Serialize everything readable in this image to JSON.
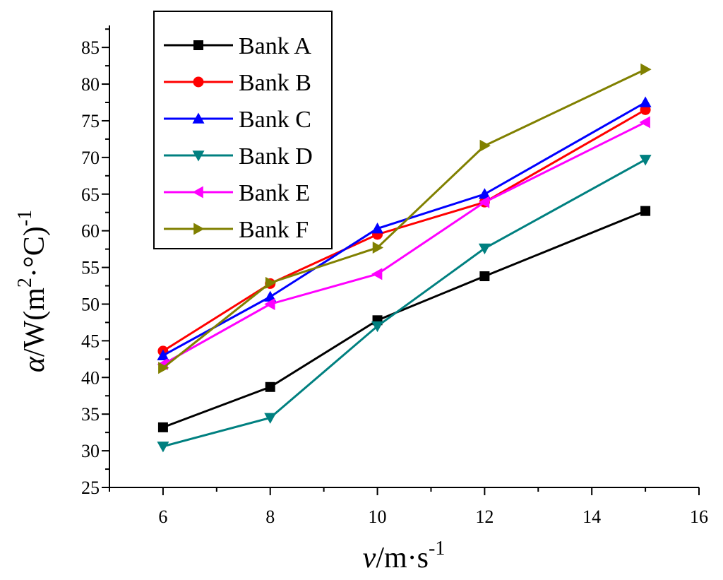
{
  "chart_data": {
    "type": "line",
    "x": [
      6,
      8,
      10,
      12,
      15
    ],
    "series": [
      {
        "name": "Bank A",
        "values": [
          33.2,
          38.7,
          47.8,
          53.8,
          62.7
        ],
        "color": "#000000",
        "marker": "square"
      },
      {
        "name": "Bank B",
        "values": [
          43.6,
          52.8,
          59.5,
          63.9,
          76.5
        ],
        "color": "#ff0000",
        "marker": "circle"
      },
      {
        "name": "Bank C",
        "values": [
          43.0,
          51.0,
          60.3,
          65.0,
          77.5
        ],
        "color": "#0000ff",
        "marker": "triangle-up"
      },
      {
        "name": "Bank D",
        "values": [
          30.6,
          34.5,
          47.0,
          57.6,
          69.7
        ],
        "color": "#008080",
        "marker": "triangle-down"
      },
      {
        "name": "Bank E",
        "values": [
          41.8,
          50.0,
          54.1,
          63.9,
          74.8
        ],
        "color": "#ff00ff",
        "marker": "triangle-left"
      },
      {
        "name": "Bank F",
        "values": [
          41.3,
          52.9,
          57.7,
          71.6,
          82.0
        ],
        "color": "#808000",
        "marker": "triangle-right"
      }
    ],
    "xlim": [
      5,
      16
    ],
    "ylim": [
      25,
      88
    ],
    "xticks": [
      6,
      8,
      10,
      12,
      14,
      16
    ],
    "yticks": [
      25,
      30,
      35,
      40,
      45,
      50,
      55,
      60,
      65,
      70,
      75,
      80,
      85
    ],
    "xlabel": {
      "var": "v",
      "unit": "/m·s",
      "exp": "-1"
    },
    "ylabel": {
      "var": "α",
      "unit": "/W(m",
      "exp1": "2",
      "mid": "·°C)",
      "exp2": "-1"
    },
    "legend": "top-left",
    "grid": false
  }
}
